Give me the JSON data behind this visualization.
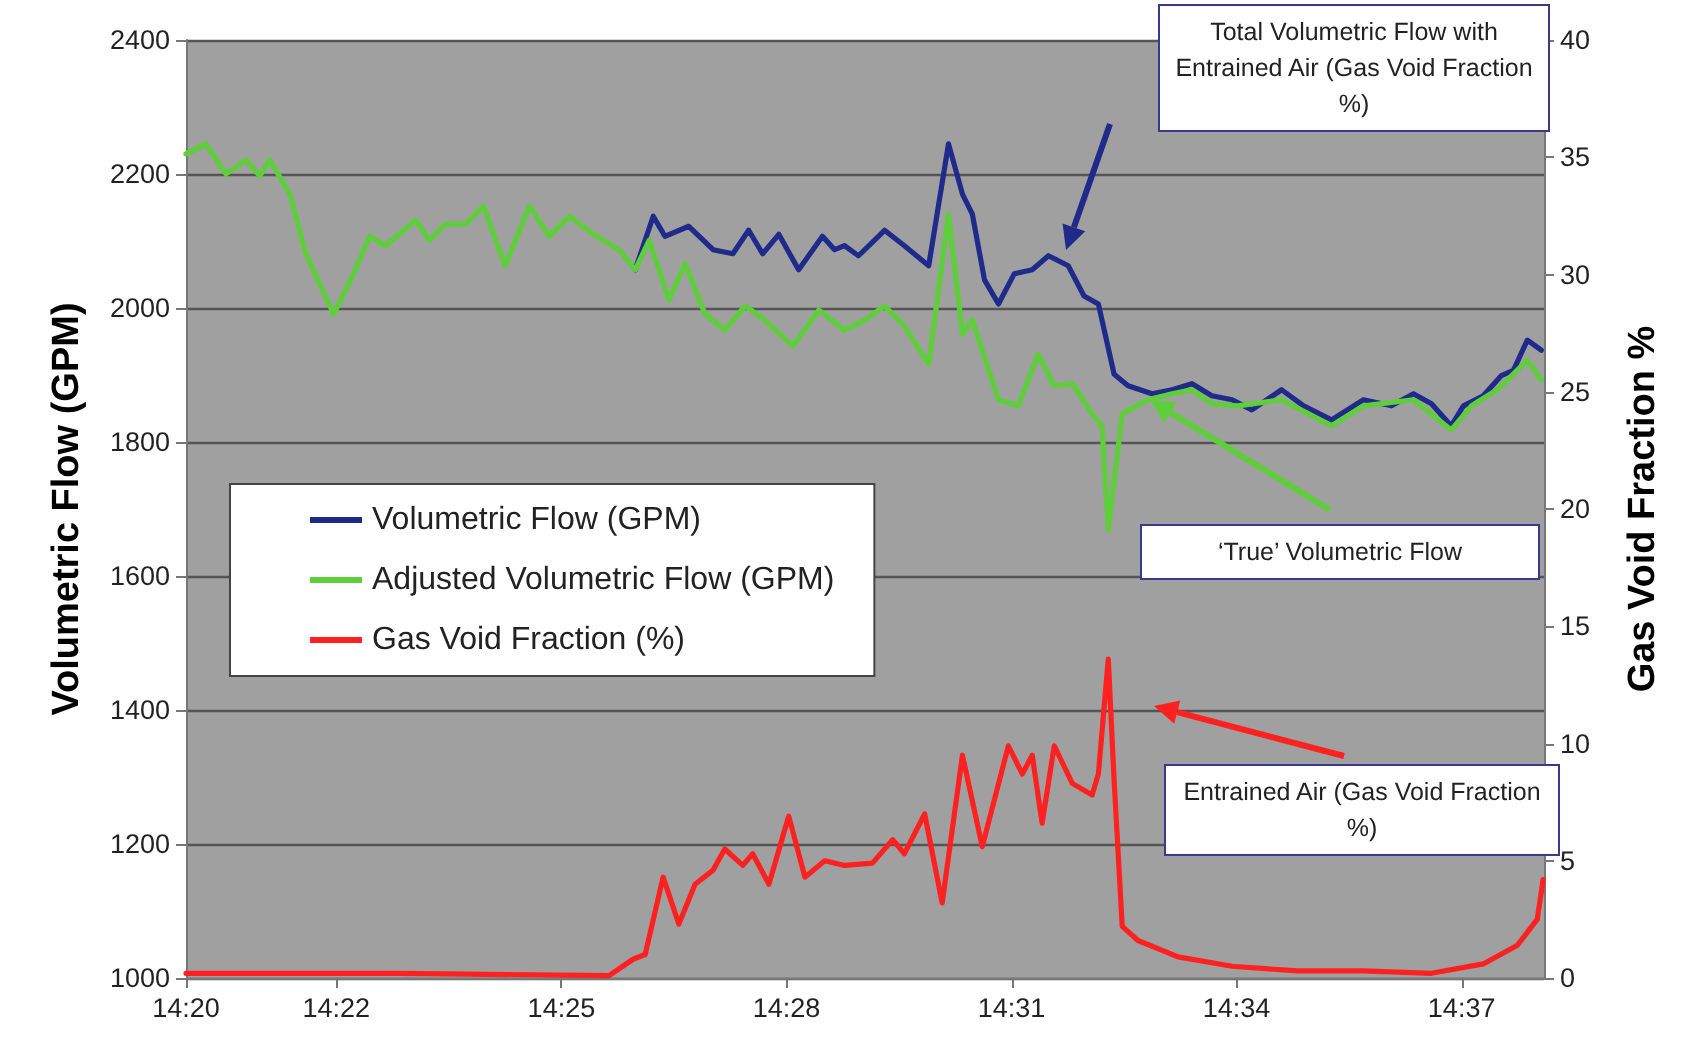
{
  "chart_data": {
    "type": "line",
    "xlabel": null,
    "ylabel": "Volumetric Flow (GPM)",
    "y2label": "Gas Void Fraction %",
    "xlim": [
      14.3333,
      14.635
    ],
    "xticks": [
      {
        "value": 14.3333,
        "label": "14:20"
      },
      {
        "value": 14.3667,
        "label": "14:22"
      },
      {
        "value": 14.4167,
        "label": "14:25"
      },
      {
        "value": 14.4667,
        "label": "14:28"
      },
      {
        "value": 14.5167,
        "label": "14:31"
      },
      {
        "value": 14.5667,
        "label": "14:34"
      },
      {
        "value": 14.6167,
        "label": "14:37"
      }
    ],
    "ylim": [
      1000,
      2400
    ],
    "yticks": [
      1000,
      1200,
      1400,
      1600,
      1800,
      2000,
      2200,
      2400
    ],
    "y2lim": [
      0,
      40
    ],
    "y2ticks": [
      0,
      5,
      10,
      15,
      20,
      25,
      30,
      35,
      40
    ],
    "grid": "y",
    "legend": "left",
    "series": [
      {
        "name": "Volumetric Flow (GPM)",
        "color": "#1f2a8a",
        "x": [
          14.4331,
          14.4371,
          14.4397,
          14.445,
          14.4504,
          14.4548,
          14.4583,
          14.4614,
          14.465,
          14.4694,
          14.4747,
          14.4774,
          14.4796,
          14.4827,
          14.4885,
          14.4929,
          14.4983,
          14.5027,
          14.5058,
          14.508,
          14.5107,
          14.5138,
          14.5173,
          14.5213,
          14.5249,
          14.5293,
          14.5328,
          14.536,
          14.5395,
          14.5426,
          14.5479,
          14.5524,
          14.5568,
          14.5612,
          14.5657,
          14.5701,
          14.5767,
          14.5816,
          14.5878,
          14.5949,
          14.6011,
          14.606,
          14.61,
          14.6144,
          14.6171,
          14.6215,
          14.6255,
          14.6282,
          14.6313,
          14.6344
        ],
        "values": [
          2057,
          2137,
          2107,
          2122,
          2087,
          2081,
          2116,
          2081,
          2110,
          2057,
          2107,
          2087,
          2093,
          2078,
          2116,
          2093,
          2063,
          2245,
          2170,
          2140,
          2042,
          2006,
          2051,
          2057,
          2078,
          2063,
          2018,
          2006,
          1901,
          1884,
          1872,
          1878,
          1887,
          1869,
          1863,
          1848,
          1878,
          1854,
          1833,
          1863,
          1854,
          1872,
          1857,
          1824,
          1854,
          1869,
          1899,
          1907,
          1952,
          1937
        ]
      },
      {
        "name": "Adjusted Volumetric Flow (GPM)",
        "color": "#5ecf3a",
        "x": [
          14.3333,
          14.3377,
          14.3422,
          14.3466,
          14.3497,
          14.3519,
          14.3564,
          14.3599,
          14.3661,
          14.3705,
          14.3741,
          14.3776,
          14.3843,
          14.3874,
          14.3909,
          14.3954,
          14.3994,
          14.4042,
          14.4096,
          14.414,
          14.4185,
          14.4238,
          14.4295,
          14.4331,
          14.4362,
          14.4406,
          14.4442,
          14.4486,
          14.453,
          14.4575,
          14.4619,
          14.4681,
          14.4739,
          14.4796,
          14.4841,
          14.4885,
          14.4929,
          14.4983,
          14.5027,
          14.5058,
          14.508,
          14.5138,
          14.5182,
          14.5226,
          14.5262,
          14.5302,
          14.5346,
          14.5368,
          14.5382,
          14.5413,
          14.547,
          14.5524,
          14.5568,
          14.5612,
          14.567,
          14.5767,
          14.5878,
          14.5949,
          14.606,
          14.6144,
          14.6189,
          14.6246,
          14.6313,
          14.6344
        ],
        "values": [
          2230,
          2245,
          2200,
          2221,
          2197,
          2221,
          2170,
          2081,
          1991,
          2051,
          2107,
          2093,
          2131,
          2101,
          2125,
          2125,
          2152,
          2063,
          2152,
          2107,
          2137,
          2110,
          2087,
          2057,
          2101,
          2012,
          2066,
          1991,
          1967,
          2003,
          1982,
          1943,
          1997,
          1967,
          1982,
          2003,
          1973,
          1916,
          2140,
          1961,
          1982,
          1863,
          1854,
          1931,
          1884,
          1887,
          1842,
          1824,
          1669,
          1842,
          1863,
          1872,
          1878,
          1857,
          1854,
          1863,
          1824,
          1854,
          1863,
          1818,
          1854,
          1878,
          1922,
          1893
        ]
      },
      {
        "name": "Gas Void Fraction (%)",
        "color": "#ff2020",
        "axis": "y2",
        "x": [
          14.3333,
          14.3807,
          14.4273,
          14.4326,
          14.4353,
          14.4393,
          14.4428,
          14.4464,
          14.4504,
          14.453,
          14.457,
          14.4592,
          14.4628,
          14.4672,
          14.4708,
          14.4752,
          14.4796,
          14.4858,
          14.4903,
          14.4929,
          14.4974,
          14.5013,
          14.5058,
          14.5102,
          14.516,
          14.5191,
          14.5213,
          14.5235,
          14.5262,
          14.5302,
          14.5346,
          14.536,
          14.5382,
          14.5395,
          14.5413,
          14.5448,
          14.5537,
          14.5657,
          14.5803,
          14.5949,
          14.61,
          14.6215,
          14.6291,
          14.6335,
          14.6348
        ],
        "values": [
          0.2,
          0.2,
          0.1,
          0.8,
          1.0,
          4.3,
          2.3,
          4.0,
          4.6,
          5.5,
          4.8,
          5.3,
          4.0,
          6.9,
          4.3,
          5.0,
          4.8,
          4.9,
          5.9,
          5.3,
          7.0,
          3.2,
          9.5,
          5.6,
          9.9,
          8.7,
          9.5,
          6.6,
          9.9,
          8.3,
          7.8,
          8.7,
          13.6,
          8.4,
          2.2,
          1.6,
          0.9,
          0.5,
          0.3,
          0.3,
          0.2,
          0.6,
          1.4,
          2.5,
          4.2
        ]
      }
    ],
    "annotations": [
      "Total Volumetric Flow with Entrained Air (Gas Void Fraction %)",
      "‘True’ Volumetric Flow",
      "Entrained Air (Gas Void Fraction %)"
    ]
  }
}
